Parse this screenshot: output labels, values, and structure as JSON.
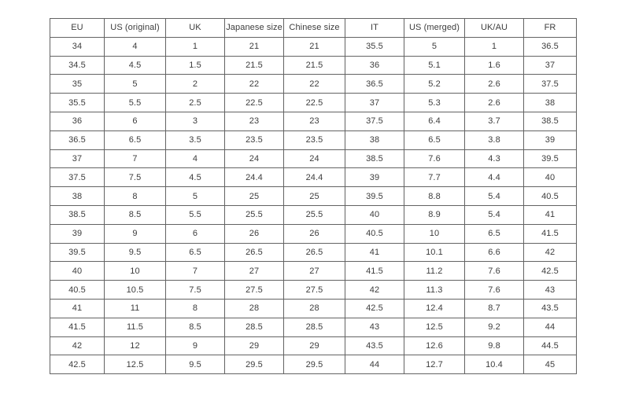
{
  "chart_data": {
    "type": "table",
    "headers": [
      "EU",
      "US (original)",
      "UK",
      "Japanese size",
      "Chinese size",
      "IT",
      "US (merged)",
      "UK/AU",
      "FR"
    ],
    "rows": [
      [
        "34",
        "4",
        "1",
        "21",
        "21",
        "35.5",
        "5",
        "1",
        "36.5"
      ],
      [
        "34.5",
        "4.5",
        "1.5",
        "21.5",
        "21.5",
        "36",
        "5.1",
        "1.6",
        "37"
      ],
      [
        "35",
        "5",
        "2",
        "22",
        "22",
        "36.5",
        "5.2",
        "2.6",
        "37.5"
      ],
      [
        "35.5",
        "5.5",
        "2.5",
        "22.5",
        "22.5",
        "37",
        "5.3",
        "2.6",
        "38"
      ],
      [
        "36",
        "6",
        "3",
        "23",
        "23",
        "37.5",
        "6.4",
        "3.7",
        "38.5"
      ],
      [
        "36.5",
        "6.5",
        "3.5",
        "23.5",
        "23.5",
        "38",
        "6.5",
        "3.8",
        "39"
      ],
      [
        "37",
        "7",
        "4",
        "24",
        "24",
        "38.5",
        "7.6",
        "4.3",
        "39.5"
      ],
      [
        "37.5",
        "7.5",
        "4.5",
        "24.4",
        "24.4",
        "39",
        "7.7",
        "4.4",
        "40"
      ],
      [
        "38",
        "8",
        "5",
        "25",
        "25",
        "39.5",
        "8.8",
        "5.4",
        "40.5"
      ],
      [
        "38.5",
        "8.5",
        "5.5",
        "25.5",
        "25.5",
        "40",
        "8.9",
        "5.4",
        "41"
      ],
      [
        "39",
        "9",
        "6",
        "26",
        "26",
        "40.5",
        "10",
        "6.5",
        "41.5"
      ],
      [
        "39.5",
        "9.5",
        "6.5",
        "26.5",
        "26.5",
        "41",
        "10.1",
        "6.6",
        "42"
      ],
      [
        "40",
        "10",
        "7",
        "27",
        "27",
        "41.5",
        "11.2",
        "7.6",
        "42.5"
      ],
      [
        "40.5",
        "10.5",
        "7.5",
        "27.5",
        "27.5",
        "42",
        "11.3",
        "7.6",
        "43"
      ],
      [
        "41",
        "11",
        "8",
        "28",
        "28",
        "42.5",
        "12.4",
        "8.7",
        "43.5"
      ],
      [
        "41.5",
        "11.5",
        "8.5",
        "28.5",
        "28.5",
        "43",
        "12.5",
        "9.2",
        "44"
      ],
      [
        "42",
        "12",
        "9",
        "29",
        "29",
        "43.5",
        "12.6",
        "9.8",
        "44.5"
      ],
      [
        "42.5",
        "12.5",
        "9.5",
        "29.5",
        "29.5",
        "44",
        "12.7",
        "10.4",
        "45"
      ]
    ]
  },
  "colors": {
    "border": "#636363",
    "text": "#3d3d3d",
    "background": "#ffffff"
  }
}
